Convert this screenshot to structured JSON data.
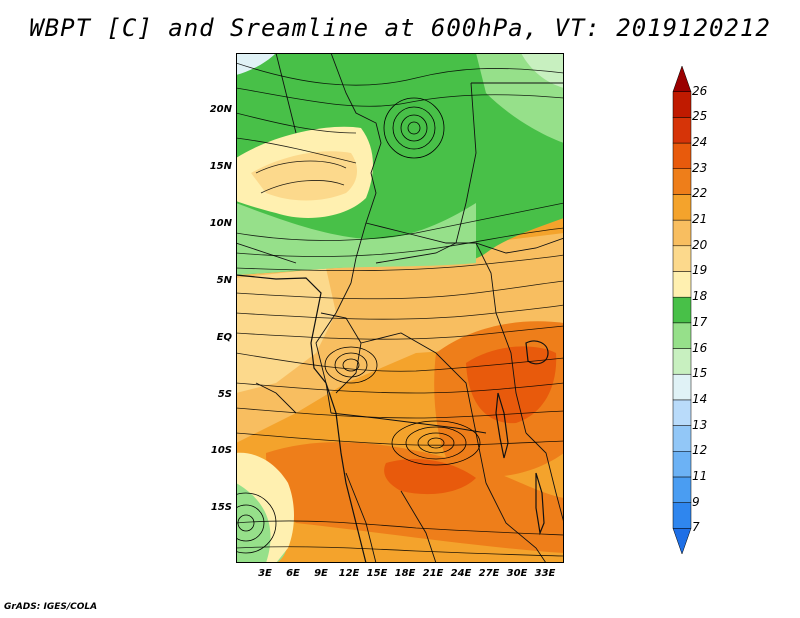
{
  "title": "WBPT [C] and Sreamline at 600hPa, VT: 2019120212",
  "footer": "GrADS: IGES/COLA",
  "lat_labels": [
    "20N",
    "15N",
    "10N",
    "5N",
    "EQ",
    "5S",
    "10S",
    "15S"
  ],
  "lon_labels": [
    "3E",
    "6E",
    "9E",
    "12E",
    "15E",
    "18E",
    "21E",
    "24E",
    "27E",
    "30E",
    "33E"
  ],
  "colorbar": {
    "labels": [
      "7",
      "9",
      "11",
      "12",
      "13",
      "14",
      "15",
      "16",
      "17",
      "18",
      "19",
      "20",
      "21",
      "22",
      "23",
      "24",
      "25",
      "26"
    ],
    "colors": [
      "#1e6fe6",
      "#2f86ee",
      "#4a9df2",
      "#6cb2f5",
      "#92c7f7",
      "#b9dbfa",
      "#e0f2f6",
      "#c8f0c0",
      "#96e08a",
      "#48c048",
      "#fff0b0",
      "#fcd98c",
      "#f8be60",
      "#f4a32c",
      "#ee7e1a",
      "#e85a0c",
      "#d63408",
      "#c01a00",
      "#9a0000"
    ]
  },
  "map": {
    "region_lat_min": -20,
    "region_lat_max": 24,
    "region_lon_min": 0,
    "region_lon_max": 35,
    "vortex_centers": [
      {
        "name": "cyclonic-eddy-north",
        "lon": 19,
        "lat": 19
      },
      {
        "name": "cyclonic-eddy-south",
        "lon": 21,
        "lat": -9
      },
      {
        "name": "eddy-southwest",
        "lon": 2,
        "lat": -17
      }
    ]
  }
}
